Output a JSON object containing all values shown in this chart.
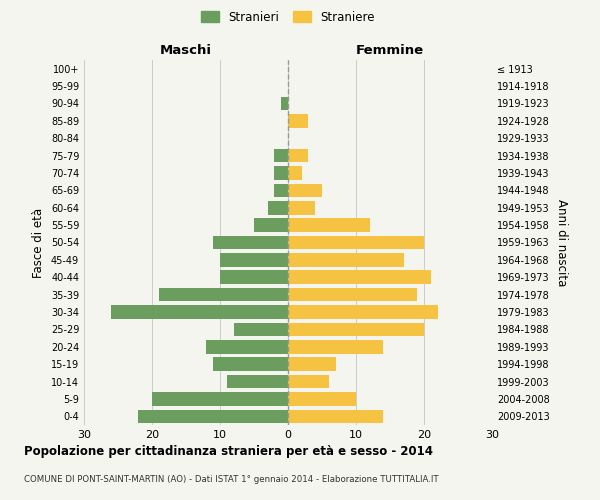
{
  "age_groups": [
    "0-4",
    "5-9",
    "10-14",
    "15-19",
    "20-24",
    "25-29",
    "30-34",
    "35-39",
    "40-44",
    "45-49",
    "50-54",
    "55-59",
    "60-64",
    "65-69",
    "70-74",
    "75-79",
    "80-84",
    "85-89",
    "90-94",
    "95-99",
    "100+"
  ],
  "birth_years": [
    "2009-2013",
    "2004-2008",
    "1999-2003",
    "1994-1998",
    "1989-1993",
    "1984-1988",
    "1979-1983",
    "1974-1978",
    "1969-1973",
    "1964-1968",
    "1959-1963",
    "1954-1958",
    "1949-1953",
    "1944-1948",
    "1939-1943",
    "1934-1938",
    "1929-1933",
    "1924-1928",
    "1919-1923",
    "1914-1918",
    "≤ 1913"
  ],
  "males": [
    22,
    20,
    9,
    11,
    12,
    8,
    26,
    19,
    10,
    10,
    11,
    5,
    3,
    2,
    2,
    2,
    0,
    0,
    1,
    0,
    0
  ],
  "females": [
    14,
    10,
    6,
    7,
    14,
    20,
    22,
    19,
    21,
    17,
    20,
    12,
    4,
    5,
    2,
    3,
    0,
    3,
    0,
    0,
    0
  ],
  "male_color": "#6b9e5e",
  "female_color": "#f5c242",
  "background_color": "#f5f5f0",
  "grid_color": "#cccccc",
  "dashed_line_color": "#999999",
  "xlim": 30,
  "title": "Popolazione per cittadinanza straniera per età e sesso - 2014",
  "subtitle": "COMUNE DI PONT-SAINT-MARTIN (AO) - Dati ISTAT 1° gennaio 2014 - Elaborazione TUTTITALIA.IT",
  "ylabel_left": "Fasce di età",
  "ylabel_right": "Anni di nascita",
  "xlabel_left": "Maschi",
  "xlabel_right": "Femmine",
  "legend_male": "Stranieri",
  "legend_female": "Straniere"
}
